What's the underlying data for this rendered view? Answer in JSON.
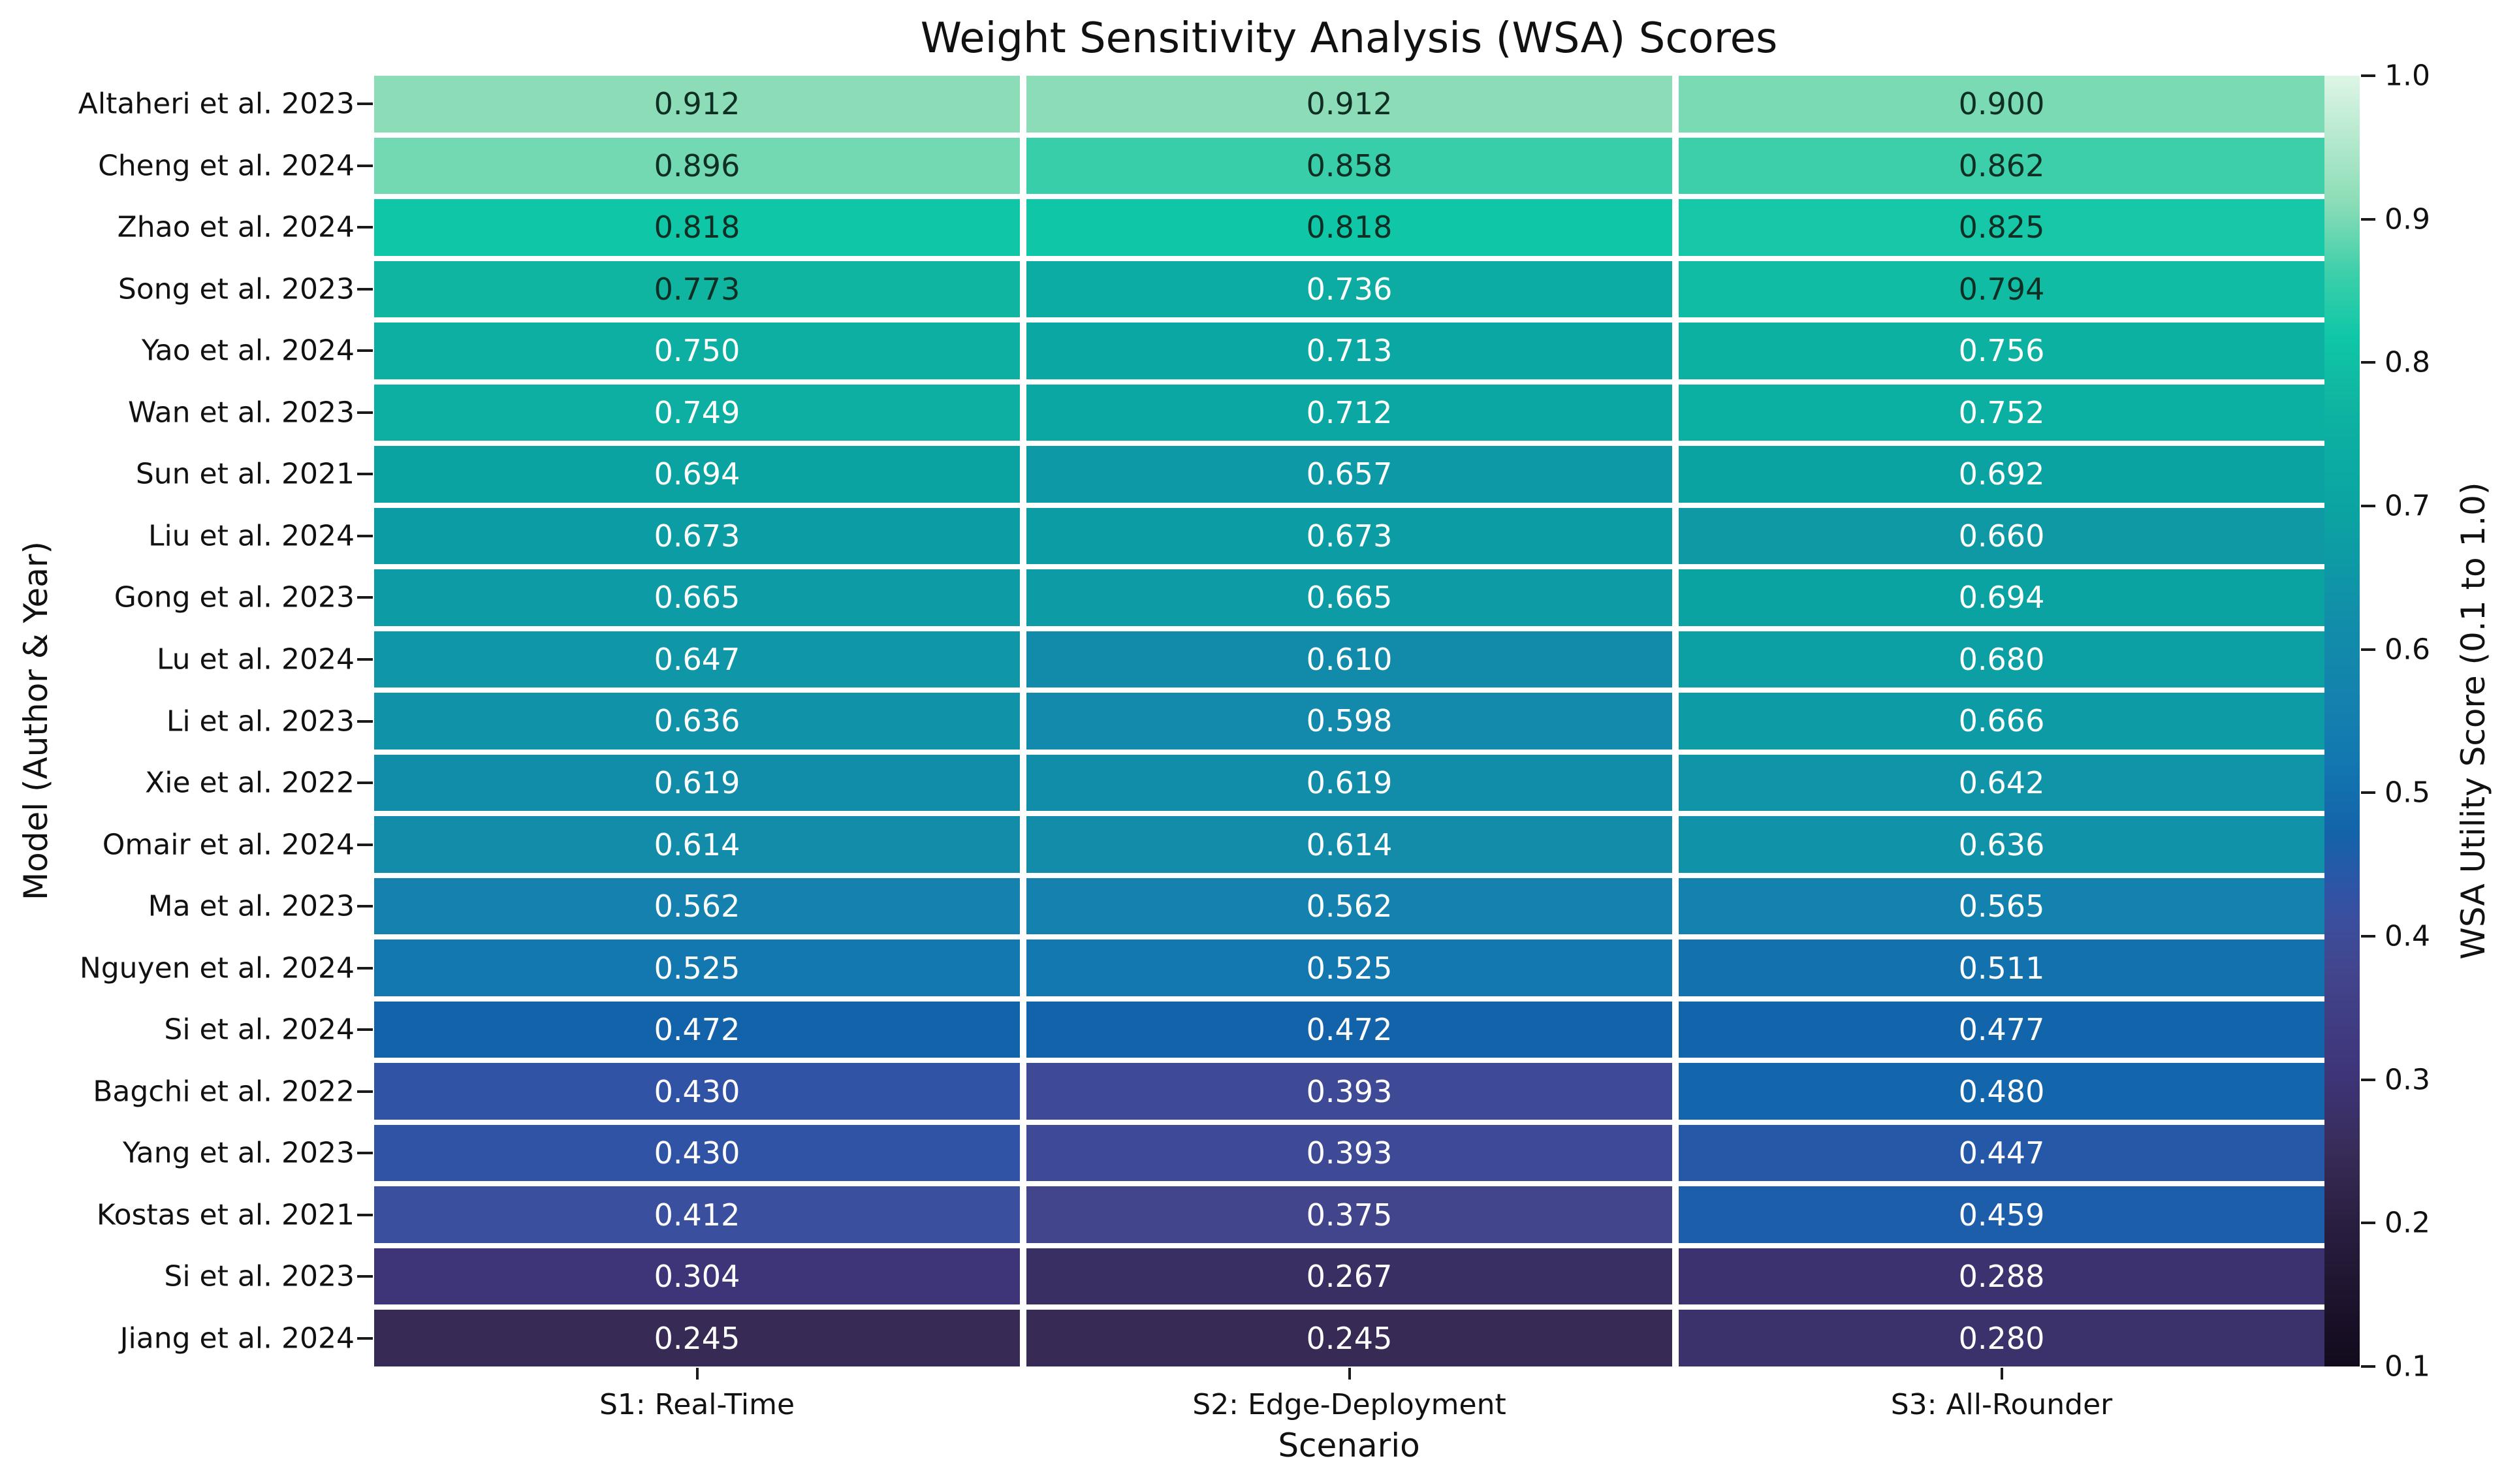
{
  "chart_data": {
    "type": "heatmap",
    "title": "Weight Sensitivity Analysis (WSA) Scores",
    "xlabel": "Scenario",
    "ylabel": "Model (Author & Year)",
    "x_categories": [
      "S1: Real-Time",
      "S2: Edge-Deployment",
      "S3: All-Rounder"
    ],
    "rows": [
      {
        "label": "Altaheri et al. 2023",
        "values": [
          0.912,
          0.912,
          0.9
        ]
      },
      {
        "label": "Cheng et al. 2024",
        "values": [
          0.896,
          0.858,
          0.862
        ]
      },
      {
        "label": "Zhao et al. 2024",
        "values": [
          0.818,
          0.818,
          0.825
        ]
      },
      {
        "label": "Song et al. 2023",
        "values": [
          0.773,
          0.736,
          0.794
        ]
      },
      {
        "label": "Yao et al. 2024",
        "values": [
          0.75,
          0.713,
          0.756
        ]
      },
      {
        "label": "Wan et al. 2023",
        "values": [
          0.749,
          0.712,
          0.752
        ]
      },
      {
        "label": "Sun et al. 2021",
        "values": [
          0.694,
          0.657,
          0.692
        ]
      },
      {
        "label": "Liu et al. 2024",
        "values": [
          0.673,
          0.673,
          0.66
        ]
      },
      {
        "label": "Gong et al. 2023",
        "values": [
          0.665,
          0.665,
          0.694
        ]
      },
      {
        "label": "Lu et al. 2024",
        "values": [
          0.647,
          0.61,
          0.68
        ]
      },
      {
        "label": "Li et al. 2023",
        "values": [
          0.636,
          0.598,
          0.666
        ]
      },
      {
        "label": "Xie et al. 2022",
        "values": [
          0.619,
          0.619,
          0.642
        ]
      },
      {
        "label": "Omair et al. 2024",
        "values": [
          0.614,
          0.614,
          0.636
        ]
      },
      {
        "label": "Ma et al. 2023",
        "values": [
          0.562,
          0.562,
          0.565
        ]
      },
      {
        "label": "Nguyen et al. 2024",
        "values": [
          0.525,
          0.525,
          0.511
        ]
      },
      {
        "label": "Si et al. 2024",
        "values": [
          0.472,
          0.472,
          0.477
        ]
      },
      {
        "label": "Bagchi et al. 2022",
        "values": [
          0.43,
          0.393,
          0.48
        ]
      },
      {
        "label": "Yang et al. 2023",
        "values": [
          0.43,
          0.393,
          0.447
        ]
      },
      {
        "label": "Kostas et al. 2021",
        "values": [
          0.412,
          0.375,
          0.459
        ]
      },
      {
        "label": "Si et al. 2023",
        "values": [
          0.304,
          0.267,
          0.288
        ]
      },
      {
        "label": "Jiang et al. 2024",
        "values": [
          0.245,
          0.245,
          0.28
        ]
      }
    ],
    "value_format_decimals": 3,
    "colorbar": {
      "label": "WSA Utility Score (0.1 to 1.0)",
      "min": 0.1,
      "max": 1.0,
      "tick_labels": [
        "1.0",
        "0.9",
        "0.8",
        "0.7",
        "0.6",
        "0.5",
        "0.4",
        "0.3",
        "0.2",
        "0.1"
      ],
      "tick_values": [
        1.0,
        0.9,
        0.8,
        0.7,
        0.6,
        0.5,
        0.4,
        0.3,
        0.2,
        0.1
      ]
    },
    "colormap": {
      "name": "mako",
      "stops": [
        [
          0.1,
          "#120A1C"
        ],
        [
          0.2,
          "#2A1E40"
        ],
        [
          0.245,
          "#372B56"
        ],
        [
          0.267,
          "#3A2F62"
        ],
        [
          0.288,
          "#3C3270"
        ],
        [
          0.304,
          "#3E3579"
        ],
        [
          0.375,
          "#42458C"
        ],
        [
          0.412,
          "#3A4F9E"
        ],
        [
          0.43,
          "#3153A6"
        ],
        [
          0.472,
          "#1363AA"
        ],
        [
          0.525,
          "#1378B0"
        ],
        [
          0.562,
          "#1481AE"
        ],
        [
          0.619,
          "#128DA9"
        ],
        [
          0.665,
          "#0D9BA5"
        ],
        [
          0.694,
          "#0BA3A2"
        ],
        [
          0.75,
          "#0CAFA2"
        ],
        [
          0.773,
          "#10B5A1"
        ],
        [
          0.818,
          "#0FC7A7"
        ],
        [
          0.862,
          "#3CCFAA"
        ],
        [
          0.912,
          "#8CDDB7"
        ],
        [
          1.0,
          "#DEF5E5"
        ]
      ]
    },
    "annotation": {
      "dark_text_threshold": 0.765,
      "dark_text_color": "#0f2e24",
      "light_text_color": "#ffffff"
    },
    "layout_hints": {
      "grid": "off",
      "legend_position": "right-colorbar",
      "cell_gridline_color": "#ffffff"
    }
  }
}
